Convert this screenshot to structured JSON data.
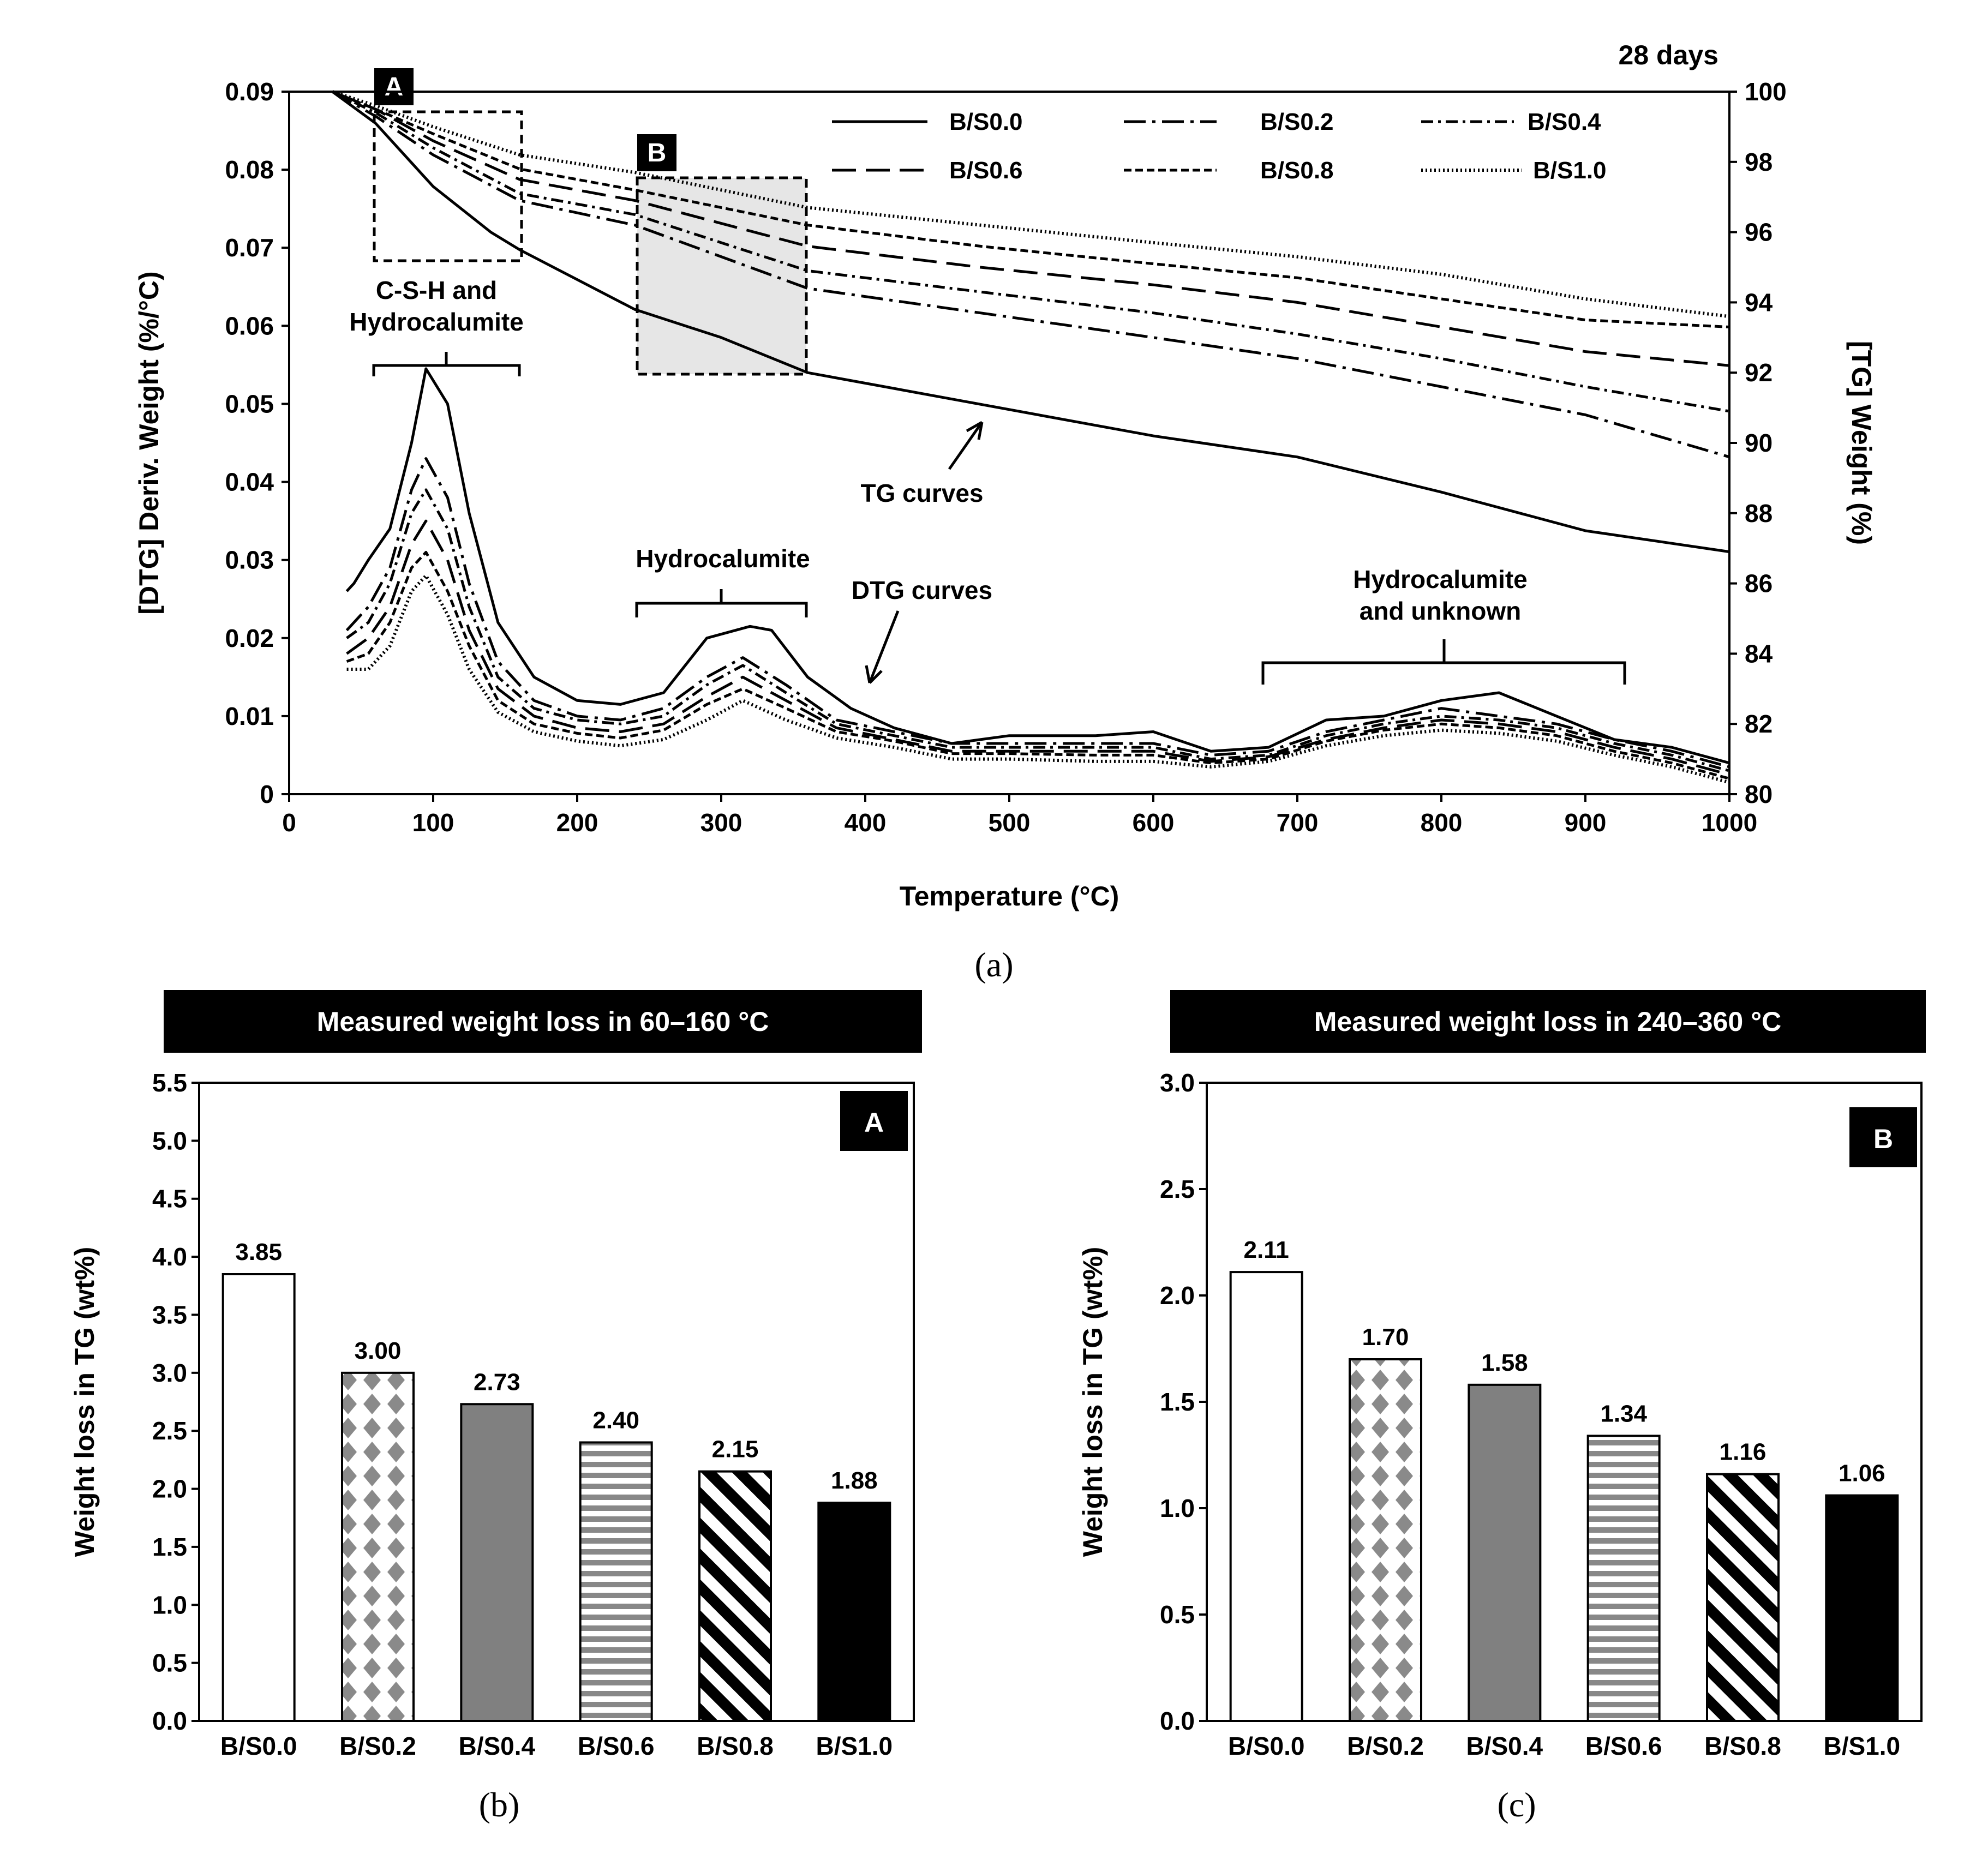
{
  "colors": {
    "ink": "#000000",
    "bar_grey": "#808080",
    "box_fill": "#e6e6e6",
    "banner_bg": "#000000",
    "banner_text": "#ffffff"
  },
  "panel_a": {
    "caption": "(a)",
    "duration_label": "28 days",
    "box_labels": [
      "A",
      "B"
    ],
    "annotations": {
      "csh_line1": "C-S-H and",
      "csh_line2": "Hydrocalumite",
      "hydro_mid": "Hydrocalumite",
      "hydro_high_line1": "Hydrocalumite",
      "hydro_high_line2": "and unknown",
      "tg_curves": "TG curves",
      "dtg_curves": "DTG curves"
    }
  },
  "panel_b": {
    "caption": "(b)",
    "banner": "Measured weight loss in 60–160 °C",
    "box_label": "A"
  },
  "panel_c": {
    "caption": "(c)",
    "banner": "Measured weight loss in 240–360 °C",
    "box_label": "B"
  },
  "chart_data": [
    {
      "id": "a",
      "type": "line",
      "title": "",
      "xlabel": "Temperature (°C)",
      "ylabel_left": "[DTG] Deriv. Weight (%/°C)",
      "ylabel_right": "[TG] Weight (%)",
      "xlim": [
        0,
        1000
      ],
      "ylim_left": [
        0,
        0.09
      ],
      "ylim_right": [
        80,
        100
      ],
      "x_ticks": [
        "0",
        "100",
        "200",
        "300",
        "400",
        "500",
        "600",
        "700",
        "800",
        "900",
        "1000"
      ],
      "y_left_ticks": [
        "0",
        "0.01",
        "0.02",
        "0.03",
        "0.04",
        "0.05",
        "0.06",
        "0.07",
        "0.08",
        "0.09"
      ],
      "y_right_ticks": [
        "80",
        "82",
        "84",
        "86",
        "88",
        "90",
        "92",
        "94",
        "96",
        "98",
        "100"
      ],
      "legend": [
        "B/S0.0",
        "B/S0.2",
        "B/S0.4",
        "B/S0.6",
        "B/S0.8",
        "B/S1.0"
      ],
      "tg_series": [
        {
          "name": "B/S0.0",
          "x": [
            30,
            60,
            100,
            140,
            160,
            240,
            300,
            360,
            400,
            480,
            560,
            600,
            700,
            800,
            900,
            1000
          ],
          "y": [
            100,
            99.1,
            97.3,
            96.0,
            95.5,
            93.8,
            93.0,
            92.0,
            91.7,
            91.1,
            90.5,
            90.2,
            89.6,
            88.6,
            87.5,
            86.9
          ]
        },
        {
          "name": "B/S0.2",
          "x": [
            30,
            60,
            100,
            160,
            240,
            360,
            480,
            600,
            700,
            800,
            900,
            1000
          ],
          "y": [
            100,
            99.3,
            98.2,
            96.9,
            96.2,
            94.4,
            93.7,
            93.0,
            92.4,
            91.6,
            90.8,
            89.6
          ]
        },
        {
          "name": "B/S0.4",
          "x": [
            30,
            60,
            100,
            160,
            240,
            360,
            480,
            600,
            700,
            800,
            900,
            1000
          ],
          "y": [
            100,
            99.4,
            98.4,
            97.1,
            96.5,
            94.9,
            94.3,
            93.7,
            93.1,
            92.4,
            91.6,
            90.9
          ]
        },
        {
          "name": "B/S0.6",
          "x": [
            30,
            60,
            100,
            160,
            240,
            360,
            480,
            600,
            700,
            800,
            900,
            1000
          ],
          "y": [
            100,
            99.5,
            98.6,
            97.5,
            96.9,
            95.6,
            95.0,
            94.5,
            94.0,
            93.3,
            92.6,
            92.2
          ]
        },
        {
          "name": "B/S0.8",
          "x": [
            30,
            60,
            100,
            160,
            240,
            360,
            480,
            600,
            700,
            800,
            900,
            1000
          ],
          "y": [
            100,
            99.5,
            98.8,
            97.8,
            97.2,
            96.2,
            95.6,
            95.1,
            94.7,
            94.1,
            93.5,
            93.3
          ]
        },
        {
          "name": "B/S1.0",
          "x": [
            30,
            60,
            100,
            160,
            240,
            360,
            480,
            600,
            700,
            800,
            900,
            1000
          ],
          "y": [
            100,
            99.6,
            99.0,
            98.2,
            97.7,
            96.7,
            96.2,
            95.7,
            95.3,
            94.8,
            94.1,
            93.6
          ]
        }
      ],
      "dtg_series": [
        {
          "name": "B/S0.0",
          "x": [
            40,
            45,
            55,
            70,
            85,
            95,
            110,
            125,
            145,
            170,
            200,
            230,
            260,
            290,
            320,
            335,
            360,
            390,
            420,
            460,
            500,
            560,
            600,
            640,
            680,
            720,
            760,
            800,
            840,
            880,
            920,
            960,
            1000
          ],
          "y": [
            0.026,
            0.027,
            0.03,
            0.034,
            0.045,
            0.0545,
            0.05,
            0.036,
            0.022,
            0.015,
            0.012,
            0.0115,
            0.013,
            0.02,
            0.0215,
            0.021,
            0.015,
            0.011,
            0.0085,
            0.0065,
            0.0075,
            0.0075,
            0.008,
            0.0055,
            0.006,
            0.0095,
            0.01,
            0.012,
            0.013,
            0.01,
            0.007,
            0.006,
            0.004
          ]
        },
        {
          "name": "B/S0.2",
          "x": [
            40,
            55,
            70,
            85,
            95,
            110,
            125,
            145,
            170,
            200,
            230,
            260,
            290,
            315,
            345,
            380,
            420,
            460,
            500,
            560,
            600,
            640,
            680,
            720,
            760,
            800,
            840,
            880,
            920,
            960,
            1000
          ],
          "y": [
            0.021,
            0.024,
            0.029,
            0.039,
            0.043,
            0.038,
            0.027,
            0.017,
            0.012,
            0.01,
            0.0095,
            0.011,
            0.015,
            0.0175,
            0.014,
            0.0095,
            0.008,
            0.0065,
            0.0065,
            0.0065,
            0.0065,
            0.005,
            0.0055,
            0.008,
            0.0095,
            0.011,
            0.01,
            0.009,
            0.007,
            0.0055,
            0.0035
          ]
        },
        {
          "name": "B/S0.4",
          "x": [
            40,
            55,
            70,
            85,
            95,
            110,
            125,
            145,
            170,
            200,
            230,
            260,
            290,
            315,
            345,
            380,
            420,
            460,
            500,
            560,
            600,
            640,
            680,
            720,
            760,
            800,
            840,
            880,
            920,
            960,
            1000
          ],
          "y": [
            0.02,
            0.022,
            0.027,
            0.036,
            0.039,
            0.034,
            0.024,
            0.015,
            0.011,
            0.0095,
            0.009,
            0.01,
            0.014,
            0.0165,
            0.013,
            0.009,
            0.0075,
            0.006,
            0.006,
            0.006,
            0.006,
            0.0045,
            0.005,
            0.0075,
            0.009,
            0.01,
            0.0095,
            0.0085,
            0.0065,
            0.005,
            0.003
          ]
        },
        {
          "name": "B/S0.6",
          "x": [
            40,
            55,
            70,
            85,
            95,
            110,
            125,
            145,
            170,
            200,
            230,
            260,
            290,
            315,
            345,
            380,
            420,
            460,
            500,
            560,
            600,
            640,
            680,
            720,
            760,
            800,
            840,
            880,
            920,
            960,
            1000
          ],
          "y": [
            0.018,
            0.02,
            0.024,
            0.032,
            0.035,
            0.03,
            0.021,
            0.0135,
            0.01,
            0.0085,
            0.008,
            0.009,
            0.0125,
            0.015,
            0.012,
            0.0085,
            0.007,
            0.0055,
            0.0055,
            0.0055,
            0.0055,
            0.0042,
            0.0048,
            0.007,
            0.0085,
            0.0095,
            0.009,
            0.008,
            0.006,
            0.0045,
            0.0025
          ]
        },
        {
          "name": "B/S0.8",
          "x": [
            40,
            55,
            70,
            85,
            95,
            110,
            125,
            145,
            170,
            200,
            230,
            260,
            290,
            315,
            345,
            380,
            420,
            460,
            500,
            560,
            600,
            640,
            680,
            720,
            760,
            800,
            840,
            880,
            920,
            960,
            1000
          ],
          "y": [
            0.017,
            0.018,
            0.022,
            0.029,
            0.031,
            0.026,
            0.019,
            0.012,
            0.009,
            0.0078,
            0.0072,
            0.0082,
            0.0115,
            0.0135,
            0.011,
            0.008,
            0.0068,
            0.0052,
            0.0052,
            0.005,
            0.005,
            0.004,
            0.0045,
            0.0068,
            0.0082,
            0.009,
            0.0085,
            0.0075,
            0.0055,
            0.004,
            0.002
          ]
        },
        {
          "name": "B/S1.0",
          "x": [
            40,
            55,
            70,
            85,
            95,
            110,
            125,
            145,
            170,
            200,
            230,
            260,
            290,
            315,
            345,
            380,
            420,
            460,
            500,
            560,
            600,
            640,
            680,
            720,
            760,
            800,
            840,
            880,
            920,
            960,
            1000
          ],
          "y": [
            0.016,
            0.016,
            0.019,
            0.026,
            0.028,
            0.023,
            0.016,
            0.0105,
            0.008,
            0.0068,
            0.0062,
            0.007,
            0.0095,
            0.012,
            0.0095,
            0.0072,
            0.006,
            0.0045,
            0.0045,
            0.0042,
            0.0042,
            0.0035,
            0.0042,
            0.0062,
            0.0075,
            0.0082,
            0.0078,
            0.0068,
            0.005,
            0.0035,
            0.0015
          ]
        }
      ]
    },
    {
      "id": "b",
      "type": "bar",
      "title": "Measured weight loss in 60–160 °C",
      "xlabel": "",
      "ylabel": "Weight loss in TG (wt%)",
      "categories": [
        "B/S0.0",
        "B/S0.2",
        "B/S0.4",
        "B/S0.6",
        "B/S0.8",
        "B/S1.0"
      ],
      "values": [
        3.85,
        3.0,
        2.73,
        2.4,
        2.15,
        1.88
      ],
      "value_labels": [
        "3.85",
        "3.00",
        "2.73",
        "2.40",
        "2.15",
        "1.88"
      ],
      "ylim": [
        0,
        5.5
      ],
      "y_ticks": [
        "0.0",
        "0.5",
        "1.0",
        "1.5",
        "2.0",
        "2.5",
        "3.0",
        "3.5",
        "4.0",
        "4.5",
        "5.0",
        "5.5"
      ]
    },
    {
      "id": "c",
      "type": "bar",
      "title": "Measured weight loss in 240–360 °C",
      "xlabel": "",
      "ylabel": "Weight loss in TG (wt%)",
      "categories": [
        "B/S0.0",
        "B/S0.2",
        "B/S0.4",
        "B/S0.6",
        "B/S0.8",
        "B/S1.0"
      ],
      "values": [
        2.11,
        1.7,
        1.58,
        1.34,
        1.16,
        1.06
      ],
      "value_labels": [
        "2.11",
        "1.70",
        "1.58",
        "1.34",
        "1.16",
        "1.06"
      ],
      "ylim": [
        0,
        3.0
      ],
      "y_ticks": [
        "0.0",
        "0.5",
        "1.0",
        "1.5",
        "2.0",
        "2.5",
        "3.0"
      ]
    }
  ]
}
